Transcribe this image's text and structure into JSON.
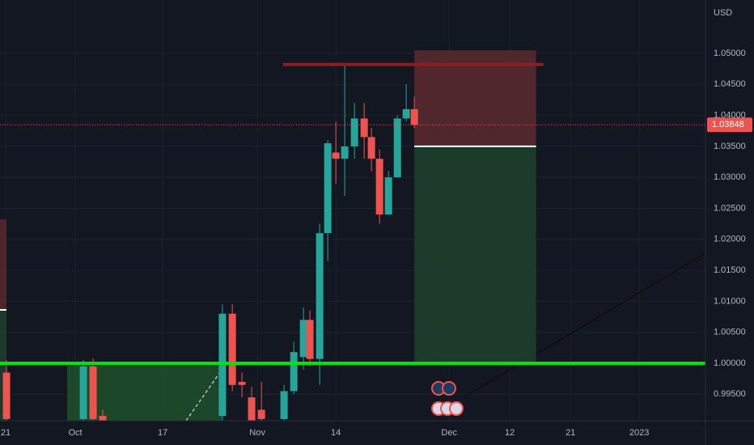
{
  "chart_data": {
    "type": "candlestick",
    "currency": "USD",
    "x": [
      0.0,
      8.26,
      9.3,
      10.34,
      23.2,
      24.26,
      25.3,
      26.34,
      27.39,
      29.82,
      30.87,
      31.91,
      32.6,
      33.65,
      34.52,
      35.39,
      36.34,
      37.39,
      38.43,
      39.21,
      40.08,
      41.04,
      42.0,
      42.95,
      43.82
    ],
    "open": [
      0.9985,
      0.991,
      0.9995,
      0.9915,
      0.9915,
      1.008,
      0.997,
      0.9945,
      0.9925,
      0.991,
      0.9955,
      1.001,
      1.007,
      1.0007,
      1.021,
      1.034,
      1.033,
      1.035,
      1.0395,
      1.0365,
      1.033,
      1.024,
      1.03,
      1.0395,
      1.041
    ],
    "high": [
      1.0005,
      1.0005,
      1.0008,
      0.9925,
      1.0095,
      1.0095,
      0.9985,
      0.9962,
      0.997,
      0.9965,
      1.0035,
      1.009,
      1.0085,
      1.0225,
      1.036,
      1.039,
      1.048,
      1.042,
      1.042,
      1.038,
      1.0345,
      1.031,
      1.04,
      1.045,
      1.043
    ],
    "low": [
      0.9907,
      0.9907,
      0.9907,
      0.9907,
      0.9907,
      0.9955,
      0.9945,
      0.9907,
      0.9907,
      0.9907,
      0.995,
      0.999,
      0.9995,
      0.9965,
      1.0165,
      1.029,
      1.027,
      1.033,
      1.033,
      1.031,
      1.0225,
      1.024,
      1.03,
      1.039,
      1.038
    ],
    "close": [
      0.991,
      0.9995,
      0.991,
      0.9908,
      1.008,
      0.9965,
      0.9965,
      0.9907,
      0.991,
      0.9955,
      1.0018,
      1.007,
      1.0007,
      1.021,
      1.0355,
      1.033,
      1.035,
      1.0395,
      1.0365,
      1.033,
      1.024,
      1.03,
      1.0395,
      1.041,
      1.03848
    ],
    "up_color": "#26a69a",
    "down_color": "#ef5350",
    "xlim": [
      -0.7,
      75.1
    ],
    "xticks": [
      {
        "value": -0.09,
        "label": "21"
      },
      {
        "value": 7.39,
        "label": "Oct"
      },
      {
        "value": 16.78,
        "label": "17"
      },
      {
        "value": 26.95,
        "label": "Nov"
      },
      {
        "value": 35.39,
        "label": "14"
      },
      {
        "value": 47.56,
        "label": "Dec"
      },
      {
        "value": 54.08,
        "label": "12"
      },
      {
        "value": 60.6,
        "label": "21"
      },
      {
        "value": 67.99,
        "label": "2023"
      }
    ],
    "ylim": [
      0.99073,
      1.05862
    ],
    "yticks": [
      {
        "value": 0.995,
        "label": "0.99500"
      },
      {
        "value": 1.0,
        "label": "1.00000"
      },
      {
        "value": 1.005,
        "label": "1.00500"
      },
      {
        "value": 1.01,
        "label": "1.01000"
      },
      {
        "value": 1.015,
        "label": "1.01500"
      },
      {
        "value": 1.02,
        "label": "1.02000"
      },
      {
        "value": 1.025,
        "label": "1.02500"
      },
      {
        "value": 1.03,
        "label": "1.03000"
      },
      {
        "value": 1.035,
        "label": "1.03500"
      },
      {
        "value": 1.04,
        "label": "1.04000"
      },
      {
        "value": 1.045,
        "label": "1.04500"
      },
      {
        "value": 1.05,
        "label": "1.05000"
      }
    ],
    "grid": true,
    "last_price": {
      "value": 1.03848,
      "label": "1.03848"
    },
    "support_level": 1.0,
    "resistance": {
      "value": 1.0482,
      "x": [
        29.7,
        57.7
      ]
    },
    "short_position": {
      "x": [
        43.82,
        56.9
      ],
      "stop": 1.0505,
      "entry": 1.035,
      "target": 1.0
    }
  }
}
